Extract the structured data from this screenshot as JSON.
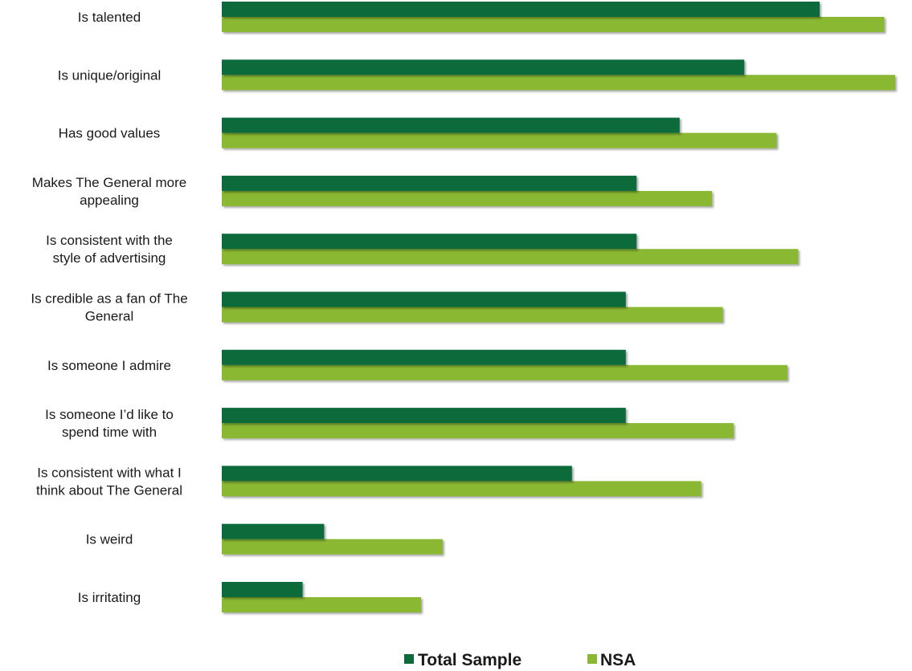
{
  "chart_data": {
    "type": "bar",
    "orientation": "horizontal",
    "categories": [
      "Is talented",
      "Is unique/original",
      "Has good values",
      "Makes The General more appealing",
      "Is consistent with the style of advertising",
      "Is credible as a fan of The General",
      "Is someone I admire",
      "Is someone I’d like to spend time with",
      "Is consistent with what I think about The General",
      "Is weird",
      "Is irritating"
    ],
    "category_lines": [
      [
        "Is talented"
      ],
      [
        "Is unique/original"
      ],
      [
        "Has good values"
      ],
      [
        "Makes The General more",
        "appealing"
      ],
      [
        "Is consistent with the",
        "style of advertising"
      ],
      [
        "Is credible as a fan of The",
        "General"
      ],
      [
        "Is someone I admire"
      ],
      [
        "Is someone I’d like to",
        "spend time with"
      ],
      [
        "Is consistent with what I",
        "think about The General"
      ],
      [
        "Is weird"
      ],
      [
        "Is irritating"
      ]
    ],
    "series": [
      {
        "name": "Total Sample",
        "color": "#0b6b3a",
        "values": [
          55.5,
          48.5,
          42.5,
          38.5,
          38.5,
          37.5,
          37.5,
          37.5,
          32.5,
          9.5,
          7.5
        ]
      },
      {
        "name": "NSA",
        "color": "#8ab833",
        "values": [
          61.5,
          62.5,
          51.5,
          45.5,
          53.5,
          46.5,
          52.5,
          47.5,
          44.5,
          20.5,
          18.5
        ]
      }
    ],
    "xlim": [
      0,
      62.5
    ],
    "grid": false,
    "axis_labels_shown": false,
    "legend_position": "bottom"
  }
}
